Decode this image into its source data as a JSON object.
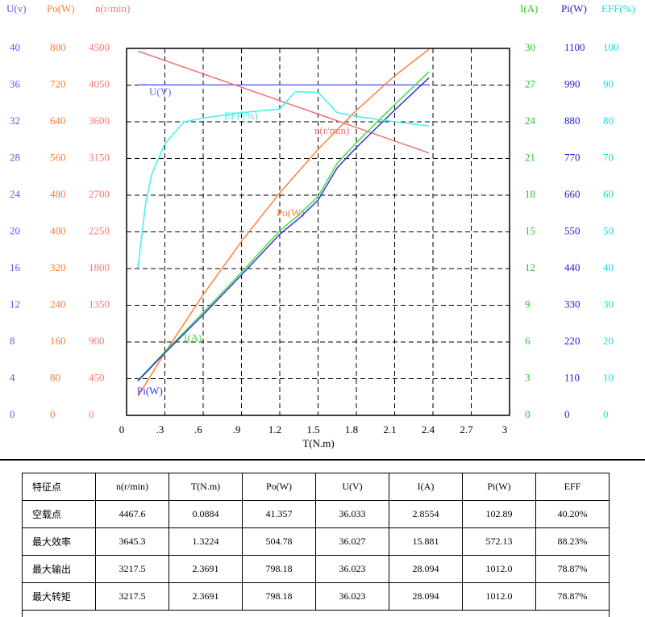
{
  "chart_data": {
    "type": "line",
    "x_label": "T(N.m)",
    "xlim": [
      0,
      3
    ],
    "xticks": [
      0,
      {
        "value": 0.3,
        "label": ".3"
      },
      {
        "value": 0.6,
        "label": ".6"
      },
      {
        "value": 0.9,
        "label": ".9"
      },
      1.2,
      1.5,
      1.8,
      2.1,
      2.4,
      2.7,
      3
    ],
    "grid": true,
    "axes": [
      {
        "title": "U(v)",
        "side": "left",
        "color": "#5a5aee",
        "lim": [
          0,
          40
        ],
        "ticks": [
          0,
          4,
          8,
          12,
          16,
          20,
          24,
          28,
          32,
          36,
          40
        ],
        "series": {
          "name": "U(V)",
          "color": "#6a6aff",
          "x": [
            0.0884,
            0.6,
            1.2,
            1.8,
            2.3691
          ],
          "values": [
            36.033,
            36.03,
            36.027,
            36.025,
            36.023
          ]
        }
      },
      {
        "title": "Po(W)",
        "side": "left",
        "color": "#ff7a30",
        "lim": [
          0,
          800
        ],
        "ticks": [
          0,
          80,
          160,
          240,
          320,
          400,
          480,
          560,
          640,
          720,
          800
        ],
        "series": {
          "name": "Po(W)",
          "color": "#ff8040",
          "x": [
            0.0884,
            0.3,
            0.6,
            0.9,
            1.2,
            1.5,
            1.8,
            2.1,
            2.3691
          ],
          "values": [
            41.357,
            136.7,
            263.1,
            379.2,
            485,
            580,
            665,
            740,
            798.18
          ]
        }
      },
      {
        "title": "n(r/min)",
        "side": "left",
        "color": "#f07878",
        "lim": [
          0,
          4500
        ],
        "ticks": [
          0,
          450,
          900,
          1350,
          1800,
          2250,
          2700,
          3150,
          3600,
          4050,
          4500
        ],
        "series": {
          "name": "n(r/min)",
          "color": "#f07070",
          "x": [
            0.0884,
            0.3,
            0.6,
            0.9,
            1.2,
            1.5,
            1.8,
            2.1,
            2.3691
          ],
          "values": [
            4467.6,
            4351,
            4187,
            4023,
            3859,
            3694,
            3530,
            3365,
            3217.5
          ]
        }
      },
      {
        "title": "I(A)",
        "side": "right",
        "color": "#22cc22",
        "lim": [
          0,
          30
        ],
        "ticks": [
          0,
          3,
          6,
          9,
          12,
          15,
          18,
          21,
          24,
          27,
          30
        ],
        "series": {
          "name": "I(A)",
          "color": "#44dd44",
          "x": [
            0.0884,
            0.3,
            0.6,
            0.9,
            1.2,
            1.35,
            1.5,
            1.65,
            1.8,
            2.1,
            2.3691
          ],
          "values": [
            2.8554,
            5.2,
            8.4,
            11.7,
            15.1,
            16.4,
            17.9,
            20.6,
            22.3,
            25.4,
            28.094
          ]
        }
      },
      {
        "title": "Pi(W)",
        "side": "right",
        "color": "#2020cc",
        "lim": [
          0,
          1100
        ],
        "ticks": [
          0,
          110,
          220,
          330,
          440,
          550,
          660,
          770,
          880,
          990,
          1100
        ],
        "series": {
          "name": "Pi(W)",
          "color": "#3333dd",
          "x": [
            0.0884,
            0.3,
            0.6,
            0.9,
            1.2,
            1.35,
            1.5,
            1.65,
            1.8,
            2.1,
            2.3691
          ],
          "values": [
            102.89,
            187,
            302,
            421,
            543,
            590,
            645,
            742,
            803,
            915,
            1012.0
          ]
        }
      },
      {
        "title": "EFF(%)",
        "side": "right",
        "color": "#22d8d8",
        "lim": [
          0,
          100
        ],
        "ticks": [
          0,
          10,
          20,
          30,
          40,
          50,
          60,
          70,
          80,
          90,
          100
        ],
        "series": {
          "name": "EFF(%)",
          "color": "#44eeee",
          "x": [
            0.0884,
            0.15,
            0.2,
            0.3,
            0.45,
            0.6,
            0.9,
            1.2,
            1.3224,
            1.5,
            1.65,
            1.8,
            2.1,
            2.3691
          ],
          "values": [
            40.2,
            58,
            66,
            74,
            80,
            81,
            82.5,
            83.5,
            88.23,
            88,
            82.5,
            81.5,
            80,
            78.87
          ]
        }
      }
    ]
  },
  "table": {
    "header": [
      "特征点",
      "n(r/min)",
      "T(N.m)",
      "Po(W)",
      "U(V)",
      "I(A)",
      "Pi(W)",
      "EFF"
    ],
    "rows": [
      [
        "空载点",
        "4467.6",
        "0.0884",
        "41.357",
        "36.033",
        "2.8554",
        "102.89",
        "40.20%"
      ],
      [
        "最大效率",
        "3645.3",
        "1.3224",
        "504.78",
        "36.027",
        "15.881",
        "572.13",
        "88.23%"
      ],
      [
        "最大输出",
        "3217.5",
        "2.3691",
        "798.18",
        "36.023",
        "28.094",
        "1012.0",
        "78.87%"
      ],
      [
        "最大转矩",
        "3217.5",
        "2.3691",
        "798.18",
        "36.023",
        "28.094",
        "1012.0",
        "78.87%"
      ]
    ]
  }
}
